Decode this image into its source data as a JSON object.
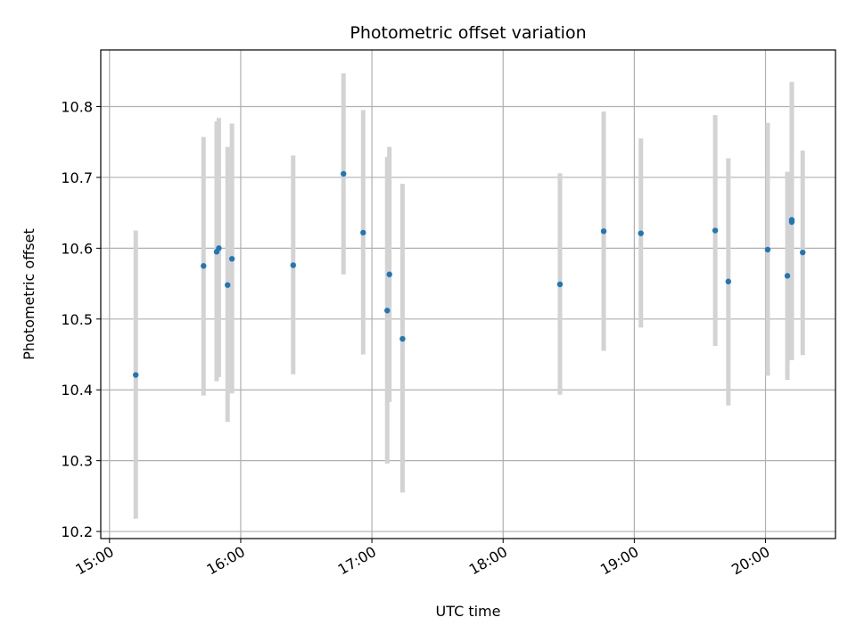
{
  "chart_data": {
    "type": "scatter",
    "title": "Photometric offset variation",
    "xlabel": "UTC time",
    "ylabel": "Photometric offset",
    "x_ticks": [
      "15:00",
      "16:00",
      "17:00",
      "18:00",
      "19:00",
      "20:00"
    ],
    "y_ticks": [
      "10.2",
      "10.3",
      "10.4",
      "10.5",
      "10.6",
      "10.7",
      "10.8"
    ],
    "xlim": [
      "14:56",
      "20:32"
    ],
    "ylim": [
      10.19,
      10.88
    ],
    "grid": true,
    "marker_color": "#1f77b4",
    "errorbar_color": "#d3d3d3",
    "points": [
      {
        "t": "15:12",
        "y": 10.421,
        "lo": 10.218,
        "hi": 10.625
      },
      {
        "t": "15:43",
        "y": 10.575,
        "lo": 10.392,
        "hi": 10.757
      },
      {
        "t": "15:49",
        "y": 10.595,
        "lo": 10.412,
        "hi": 10.779
      },
      {
        "t": "15:50",
        "y": 10.6,
        "lo": 10.418,
        "hi": 10.784
      },
      {
        "t": "15:54",
        "y": 10.548,
        "lo": 10.355,
        "hi": 10.743
      },
      {
        "t": "15:56",
        "y": 10.585,
        "lo": 10.395,
        "hi": 10.776
      },
      {
        "t": "16:24",
        "y": 10.576,
        "lo": 10.422,
        "hi": 10.731
      },
      {
        "t": "16:47",
        "y": 10.705,
        "lo": 10.563,
        "hi": 10.847
      },
      {
        "t": "16:56",
        "y": 10.622,
        "lo": 10.45,
        "hi": 10.795
      },
      {
        "t": "17:07",
        "y": 10.512,
        "lo": 10.296,
        "hi": 10.729
      },
      {
        "t": "17:08",
        "y": 10.563,
        "lo": 10.383,
        "hi": 10.743
      },
      {
        "t": "17:14",
        "y": 10.472,
        "lo": 10.255,
        "hi": 10.691
      },
      {
        "t": "18:26",
        "y": 10.549,
        "lo": 10.393,
        "hi": 10.706
      },
      {
        "t": "18:46",
        "y": 10.624,
        "lo": 10.455,
        "hi": 10.793
      },
      {
        "t": "19:03",
        "y": 10.621,
        "lo": 10.488,
        "hi": 10.755
      },
      {
        "t": "19:37",
        "y": 10.625,
        "lo": 10.462,
        "hi": 10.788
      },
      {
        "t": "19:43",
        "y": 10.553,
        "lo": 10.378,
        "hi": 10.727
      },
      {
        "t": "20:01",
        "y": 10.598,
        "lo": 10.42,
        "hi": 10.777
      },
      {
        "t": "20:10",
        "y": 10.561,
        "lo": 10.414,
        "hi": 10.708
      },
      {
        "t": "20:12",
        "y": 10.64,
        "lo": 10.442,
        "hi": 10.835
      },
      {
        "t": "20:12",
        "y": 10.637,
        "lo": 10.445,
        "hi": 10.83
      },
      {
        "t": "20:17",
        "y": 10.594,
        "lo": 10.449,
        "hi": 10.738
      }
    ]
  }
}
